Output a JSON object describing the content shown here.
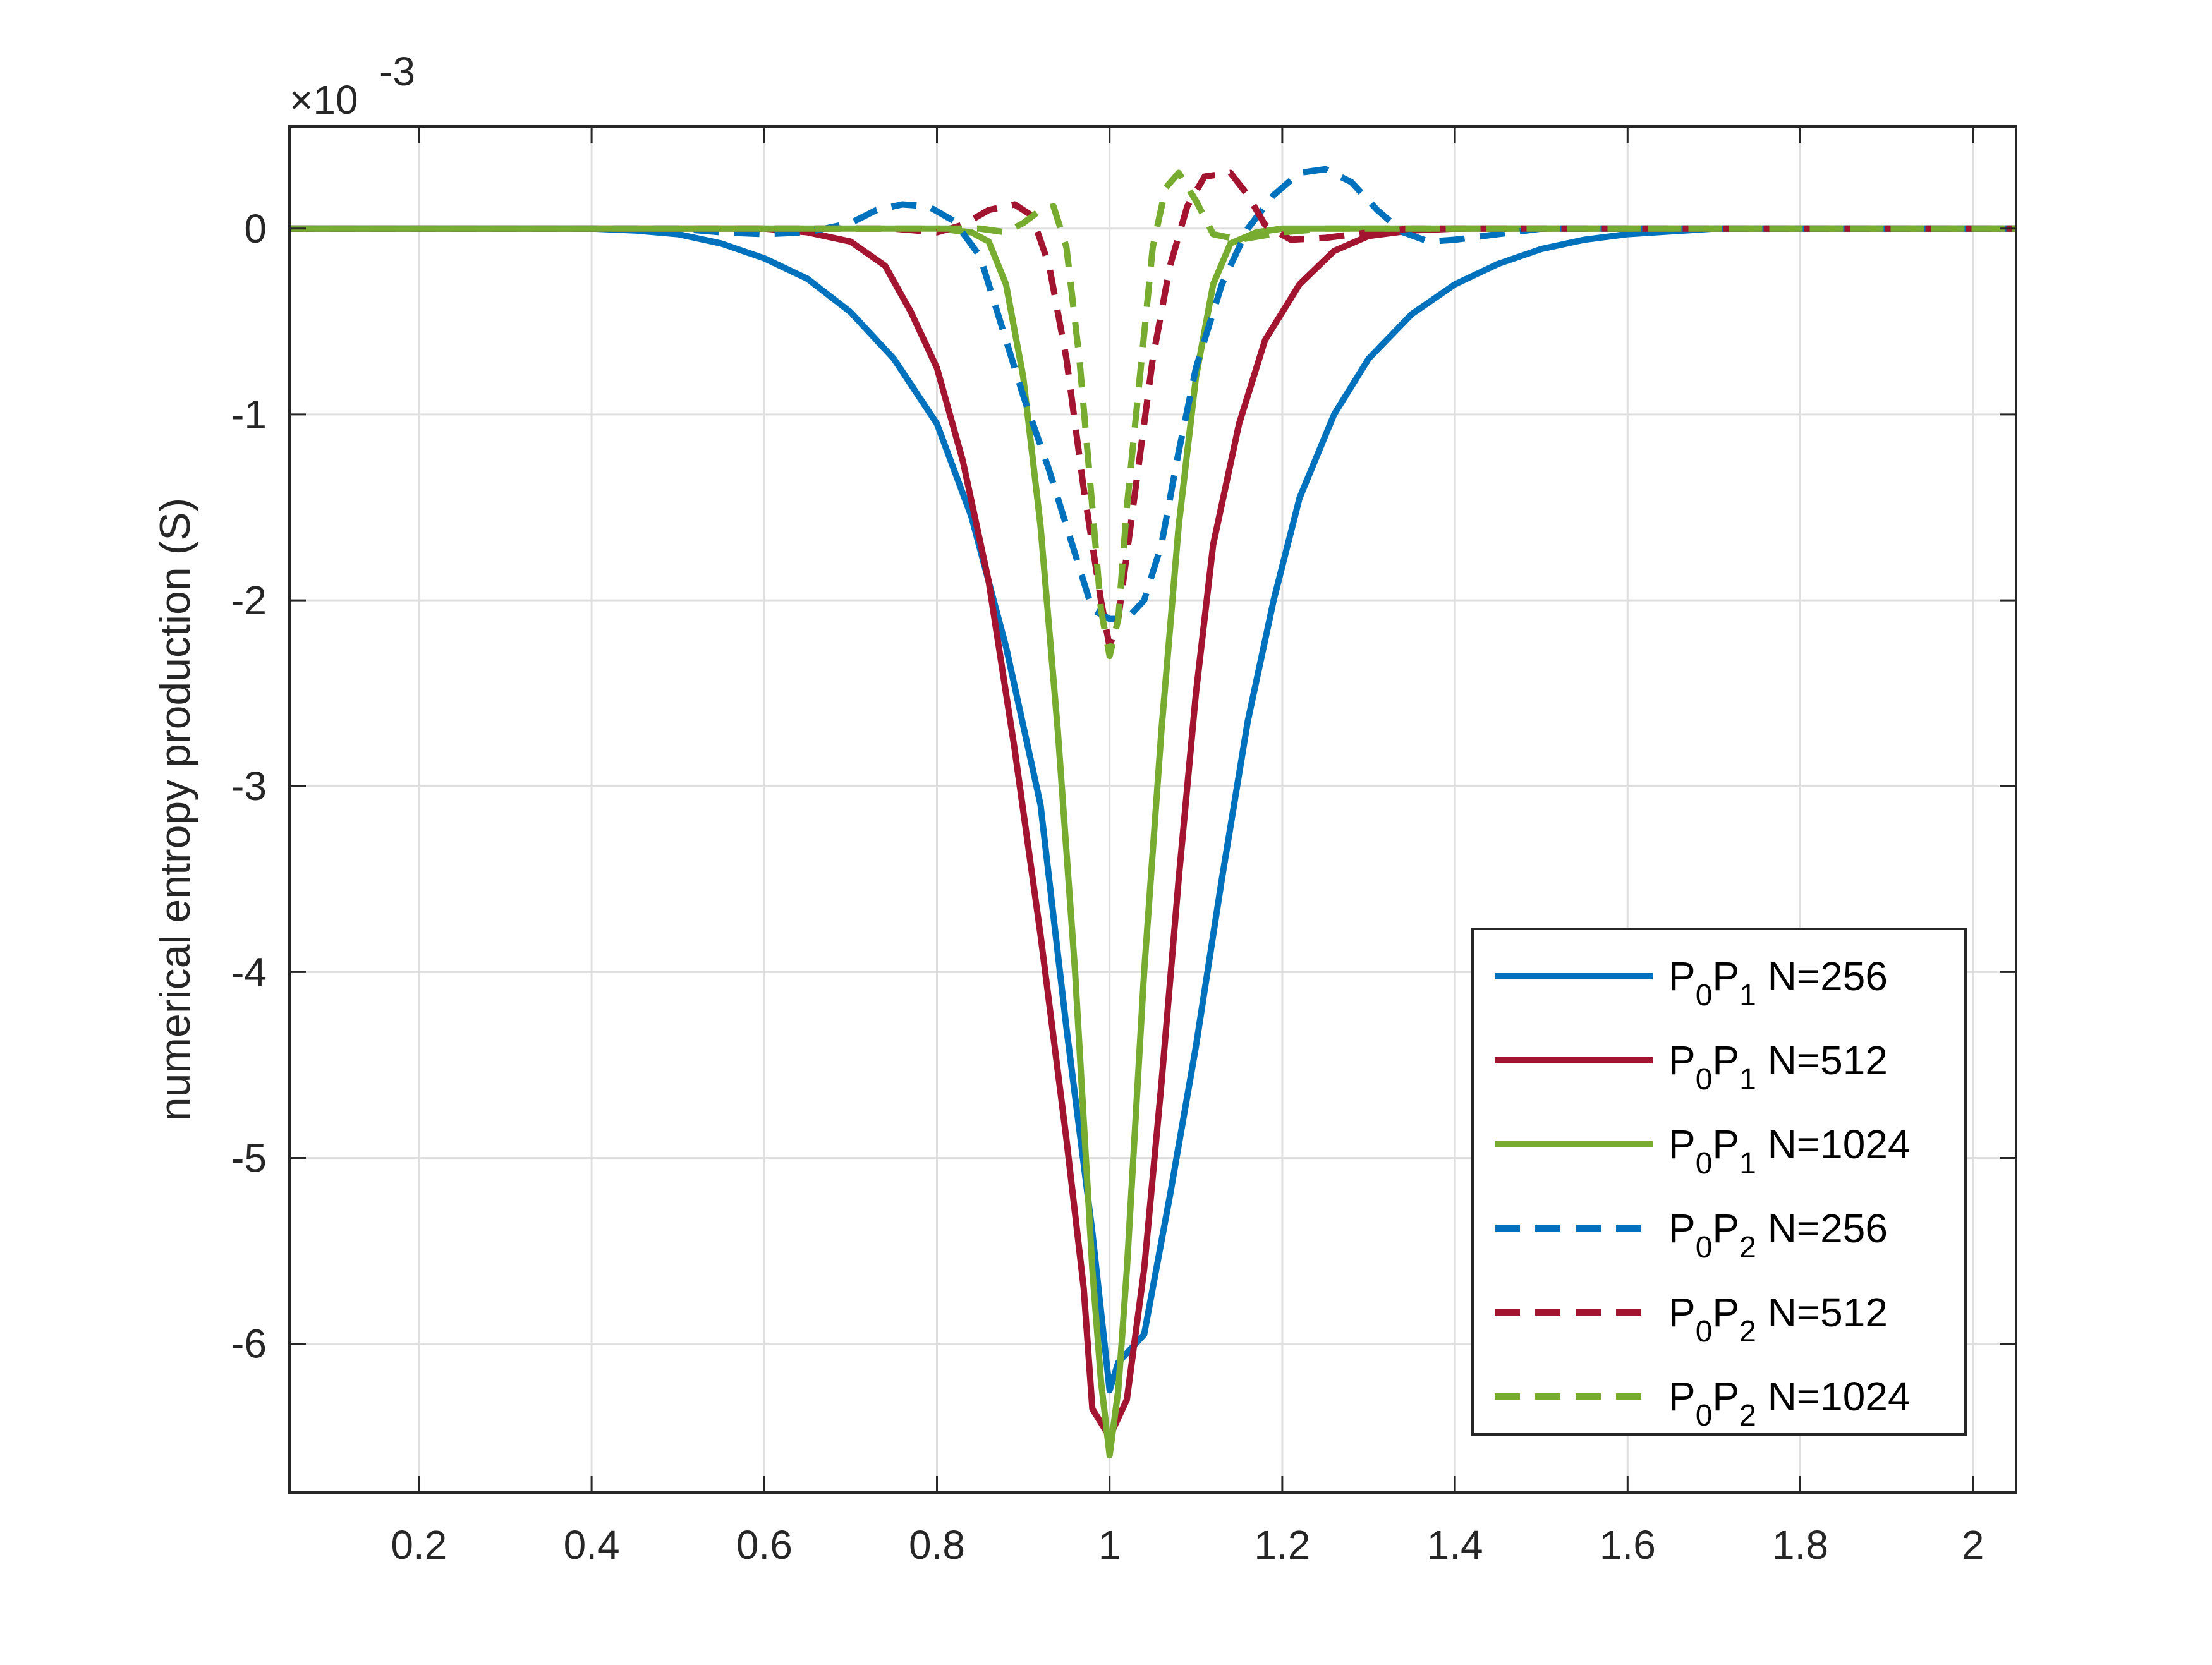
{
  "chart_data": {
    "type": "line",
    "title": "",
    "xlabel": "",
    "ylabel": "numerical entropy production (S)",
    "y_exponent_base": "×10",
    "y_exponent_power": "-3",
    "xlim": [
      0.05,
      2.05
    ],
    "ylim": [
      -6.8,
      0.55
    ],
    "xticks": [
      0.2,
      0.4,
      0.6,
      0.8,
      1.0,
      1.2,
      1.4,
      1.6,
      1.8,
      2.0
    ],
    "xtick_labels": [
      "0.2",
      "0.4",
      "0.6",
      "0.8",
      "1",
      "1.2",
      "1.4",
      "1.6",
      "1.8",
      "2"
    ],
    "yticks": [
      0,
      -1,
      -2,
      -3,
      -4,
      -5,
      -6
    ],
    "ytick_labels": [
      "0",
      "-1",
      "-2",
      "-3",
      "-4",
      "-5",
      "-6"
    ],
    "grid": true,
    "legend_position": "bottom-right",
    "series": [
      {
        "legend": {
          "p0": "P",
          "sub0": "0",
          "p1": "P",
          "sub1": "1",
          "rest": " N=256"
        },
        "color": "#0072BD",
        "dash": "solid",
        "points": [
          [
            0.05,
            0
          ],
          [
            0.3,
            0
          ],
          [
            0.4,
            0
          ],
          [
            0.45,
            -0.01
          ],
          [
            0.5,
            -0.03
          ],
          [
            0.55,
            -0.08
          ],
          [
            0.6,
            -0.16
          ],
          [
            0.65,
            -0.27
          ],
          [
            0.7,
            -0.45
          ],
          [
            0.75,
            -0.7
          ],
          [
            0.8,
            -1.05
          ],
          [
            0.84,
            -1.55
          ],
          [
            0.88,
            -2.25
          ],
          [
            0.92,
            -3.1
          ],
          [
            0.95,
            -4.3
          ],
          [
            0.98,
            -5.4
          ],
          [
            1.0,
            -6.25
          ],
          [
            1.01,
            -6.1
          ],
          [
            1.04,
            -5.95
          ],
          [
            1.07,
            -5.2
          ],
          [
            1.1,
            -4.4
          ],
          [
            1.13,
            -3.5
          ],
          [
            1.16,
            -2.65
          ],
          [
            1.19,
            -2.0
          ],
          [
            1.22,
            -1.45
          ],
          [
            1.26,
            -1.0
          ],
          [
            1.3,
            -0.7
          ],
          [
            1.35,
            -0.46
          ],
          [
            1.4,
            -0.3
          ],
          [
            1.45,
            -0.19
          ],
          [
            1.5,
            -0.11
          ],
          [
            1.55,
            -0.06
          ],
          [
            1.6,
            -0.03
          ],
          [
            1.7,
            0
          ],
          [
            2.05,
            0
          ]
        ]
      },
      {
        "legend": {
          "p0": "P",
          "sub0": "0",
          "p1": "P",
          "sub1": "1",
          "rest": " N=512"
        },
        "color": "#A2142F",
        "dash": "solid",
        "points": [
          [
            0.05,
            0
          ],
          [
            0.6,
            0
          ],
          [
            0.65,
            -0.02
          ],
          [
            0.7,
            -0.07
          ],
          [
            0.74,
            -0.2
          ],
          [
            0.77,
            -0.45
          ],
          [
            0.8,
            -0.75
          ],
          [
            0.83,
            -1.25
          ],
          [
            0.86,
            -1.9
          ],
          [
            0.89,
            -2.8
          ],
          [
            0.92,
            -3.8
          ],
          [
            0.95,
            -4.9
          ],
          [
            0.97,
            -5.7
          ],
          [
            0.98,
            -6.35
          ],
          [
            1.0,
            -6.5
          ],
          [
            1.02,
            -6.3
          ],
          [
            1.04,
            -5.6
          ],
          [
            1.06,
            -4.6
          ],
          [
            1.08,
            -3.5
          ],
          [
            1.1,
            -2.5
          ],
          [
            1.12,
            -1.7
          ],
          [
            1.15,
            -1.05
          ],
          [
            1.18,
            -0.6
          ],
          [
            1.22,
            -0.3
          ],
          [
            1.26,
            -0.12
          ],
          [
            1.3,
            -0.04
          ],
          [
            1.35,
            -0.01
          ],
          [
            1.4,
            0
          ],
          [
            2.05,
            0
          ]
        ]
      },
      {
        "legend": {
          "p0": "P",
          "sub0": "0",
          "p1": "P",
          "sub1": "1",
          "rest": " N=1024"
        },
        "color": "#77AC30",
        "dash": "solid",
        "points": [
          [
            0.05,
            0
          ],
          [
            0.8,
            0
          ],
          [
            0.84,
            -0.02
          ],
          [
            0.86,
            -0.07
          ],
          [
            0.88,
            -0.3
          ],
          [
            0.9,
            -0.8
          ],
          [
            0.92,
            -1.6
          ],
          [
            0.94,
            -2.7
          ],
          [
            0.96,
            -4.0
          ],
          [
            0.98,
            -5.6
          ],
          [
            0.99,
            -6.2
          ],
          [
            1.0,
            -6.6
          ],
          [
            1.01,
            -6.25
          ],
          [
            1.02,
            -5.6
          ],
          [
            1.04,
            -4.0
          ],
          [
            1.06,
            -2.7
          ],
          [
            1.08,
            -1.6
          ],
          [
            1.1,
            -0.8
          ],
          [
            1.12,
            -0.3
          ],
          [
            1.14,
            -0.08
          ],
          [
            1.17,
            -0.02
          ],
          [
            1.2,
            0
          ],
          [
            2.05,
            0
          ]
        ]
      },
      {
        "legend": {
          "p0": "P",
          "sub0": "0",
          "p1": "P",
          "sub1": "2",
          "rest": " N=256"
        },
        "color": "#0072BD",
        "dash": "dashed",
        "points": [
          [
            0.05,
            0
          ],
          [
            0.5,
            0
          ],
          [
            0.55,
            -0.02
          ],
          [
            0.6,
            -0.03
          ],
          [
            0.65,
            -0.02
          ],
          [
            0.7,
            0.03
          ],
          [
            0.73,
            0.1
          ],
          [
            0.76,
            0.13
          ],
          [
            0.79,
            0.12
          ],
          [
            0.82,
            0.04
          ],
          [
            0.85,
            -0.15
          ],
          [
            0.87,
            -0.45
          ],
          [
            0.9,
            -0.9
          ],
          [
            0.93,
            -1.3
          ],
          [
            0.96,
            -1.75
          ],
          [
            0.98,
            -2.05
          ],
          [
            1.0,
            -2.1
          ],
          [
            1.02,
            -2.1
          ],
          [
            1.04,
            -2.0
          ],
          [
            1.06,
            -1.7
          ],
          [
            1.08,
            -1.2
          ],
          [
            1.1,
            -0.75
          ],
          [
            1.13,
            -0.3
          ],
          [
            1.16,
            0
          ],
          [
            1.19,
            0.18
          ],
          [
            1.22,
            0.3
          ],
          [
            1.25,
            0.32
          ],
          [
            1.28,
            0.25
          ],
          [
            1.31,
            0.1
          ],
          [
            1.34,
            -0.02
          ],
          [
            1.37,
            -0.07
          ],
          [
            1.4,
            -0.06
          ],
          [
            1.45,
            -0.03
          ],
          [
            1.5,
            0
          ],
          [
            2.05,
            0
          ]
        ]
      },
      {
        "legend": {
          "p0": "P",
          "sub0": "0",
          "p1": "P",
          "sub1": "2",
          "rest": " N=512"
        },
        "color": "#A2142F",
        "dash": "dashed",
        "points": [
          [
            0.05,
            0
          ],
          [
            0.75,
            0
          ],
          [
            0.8,
            -0.02
          ],
          [
            0.83,
            0.02
          ],
          [
            0.86,
            0.1
          ],
          [
            0.89,
            0.13
          ],
          [
            0.91,
            0.07
          ],
          [
            0.93,
            -0.2
          ],
          [
            0.95,
            -0.7
          ],
          [
            0.97,
            -1.4
          ],
          [
            0.99,
            -2.0
          ],
          [
            1.0,
            -2.25
          ],
          [
            1.01,
            -2.1
          ],
          [
            1.03,
            -1.4
          ],
          [
            1.05,
            -0.7
          ],
          [
            1.07,
            -0.2
          ],
          [
            1.09,
            0.12
          ],
          [
            1.11,
            0.28
          ],
          [
            1.14,
            0.3
          ],
          [
            1.16,
            0.18
          ],
          [
            1.18,
            0.02
          ],
          [
            1.21,
            -0.06
          ],
          [
            1.25,
            -0.05
          ],
          [
            1.3,
            -0.02
          ],
          [
            1.35,
            0
          ],
          [
            2.05,
            0
          ]
        ]
      },
      {
        "legend": {
          "p0": "P",
          "sub0": "0",
          "p1": "P",
          "sub1": "2",
          "rest": " N=1024"
        },
        "color": "#77AC30",
        "dash": "dashed",
        "points": [
          [
            0.05,
            0
          ],
          [
            0.85,
            0
          ],
          [
            0.88,
            -0.02
          ],
          [
            0.9,
            0.03
          ],
          [
            0.92,
            0.1
          ],
          [
            0.935,
            0.12
          ],
          [
            0.95,
            -0.1
          ],
          [
            0.965,
            -0.7
          ],
          [
            0.98,
            -1.5
          ],
          [
            0.99,
            -2.05
          ],
          [
            1.0,
            -2.3
          ],
          [
            1.01,
            -2.1
          ],
          [
            1.02,
            -1.5
          ],
          [
            1.035,
            -0.8
          ],
          [
            1.05,
            -0.1
          ],
          [
            1.065,
            0.22
          ],
          [
            1.08,
            0.3
          ],
          [
            1.1,
            0.15
          ],
          [
            1.12,
            -0.03
          ],
          [
            1.15,
            -0.06
          ],
          [
            1.2,
            -0.02
          ],
          [
            1.25,
            0
          ],
          [
            2.05,
            0
          ]
        ]
      }
    ]
  }
}
